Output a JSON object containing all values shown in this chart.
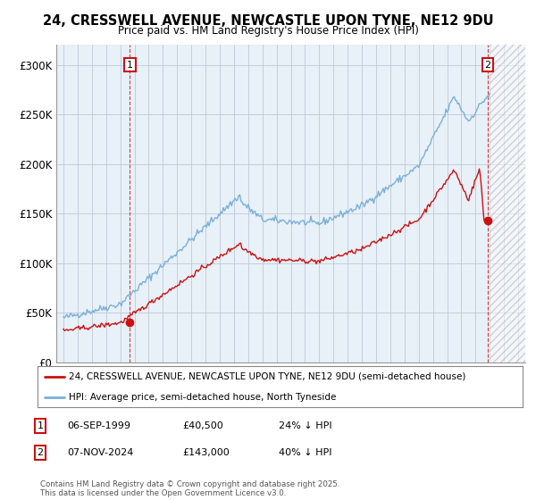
{
  "title": "24, CRESSWELL AVENUE, NEWCASTLE UPON TYNE, NE12 9DU",
  "subtitle": "Price paid vs. HM Land Registry's House Price Index (HPI)",
  "background_color": "#ffffff",
  "plot_bg_color": "#e8f0f8",
  "grid_color": "#c0c8d8",
  "hpi_color": "#7ab0d8",
  "price_color": "#cc1111",
  "marker1_x": 1999.68,
  "marker1_y": 40500,
  "marker2_x": 2024.85,
  "marker2_y": 143000,
  "legend_label1": "24, CRESSWELL AVENUE, NEWCASTLE UPON TYNE, NE12 9DU (semi-detached house)",
  "legend_label2": "HPI: Average price, semi-detached house, North Tyneside",
  "footer": "Contains HM Land Registry data © Crown copyright and database right 2025.\nThis data is licensed under the Open Government Licence v3.0.",
  "ylim": [
    0,
    320000
  ],
  "yticks": [
    0,
    50000,
    100000,
    150000,
    200000,
    250000,
    300000
  ],
  "ytick_labels": [
    "£0",
    "£50K",
    "£100K",
    "£150K",
    "£200K",
    "£250K",
    "£300K"
  ],
  "xmin": 1994.5,
  "xmax": 2027.5,
  "hatch_start": 2025.0
}
